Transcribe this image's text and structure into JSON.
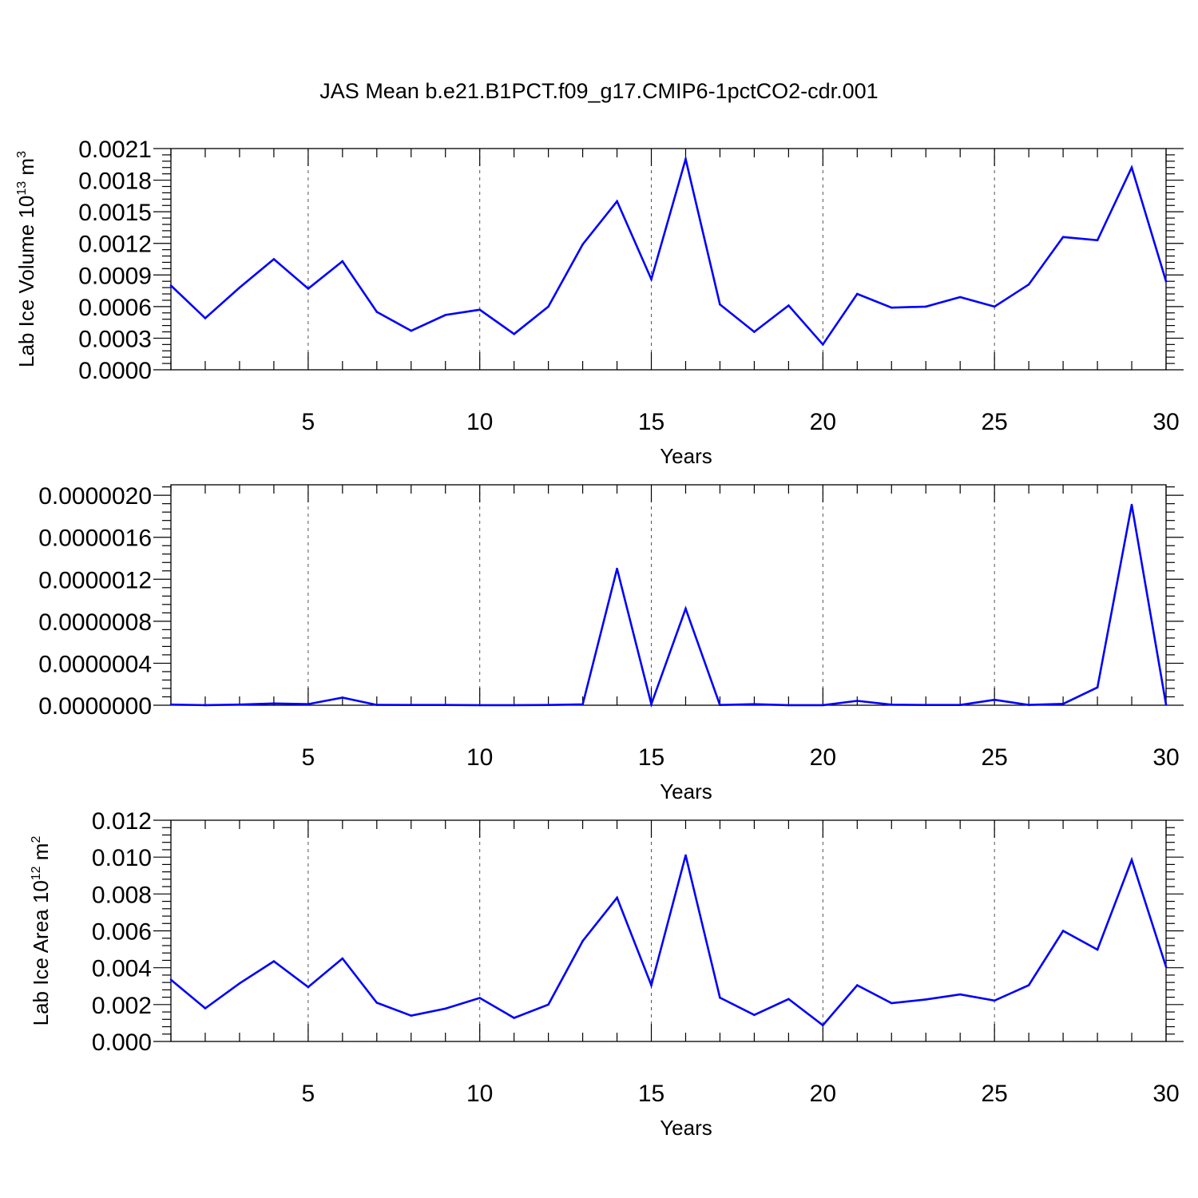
{
  "title": "JAS Mean b.e21.B1PCT.f09_g17.CMIP6-1pctCO2-cdr.001",
  "line_color": "#0000ff",
  "chart_data": [
    {
      "type": "line",
      "title": "JAS Mean b.e21.B1PCT.f09_g17.CMIP6-1pctCO2-cdr.001",
      "xlabel": "Years",
      "ylabel": {
        "prefix": "Lab Ice Volume 10",
        "exp": "13",
        "unit": " m",
        "unit_exp": "3"
      },
      "xlim": [
        1,
        30
      ],
      "ylim": [
        0,
        0.0021
      ],
      "xticks": [
        5,
        10,
        15,
        20,
        25,
        30
      ],
      "xtick_labels": [
        "5",
        "10",
        "15",
        "20",
        "25",
        "30"
      ],
      "yticks": [
        0,
        0.0003,
        0.0006,
        0.0009,
        0.0012,
        0.0015,
        0.0018,
        0.0021
      ],
      "ytick_labels": [
        "0.0000",
        "0.0003",
        "0.0006",
        "0.0009",
        "0.0012",
        "0.0015",
        "0.0018",
        "0.0021"
      ],
      "grid": "vertical dashed at major x ticks",
      "x": [
        1,
        2,
        3,
        4,
        5,
        6,
        7,
        8,
        9,
        10,
        11,
        12,
        13,
        14,
        15,
        16,
        17,
        18,
        19,
        20,
        21,
        22,
        23,
        24,
        25,
        26,
        27,
        28,
        29,
        30
      ],
      "values": [
        0.0008,
        0.00049,
        0.00078,
        0.00105,
        0.00077,
        0.00103,
        0.00055,
        0.00037,
        0.00052,
        0.00057,
        0.00034,
        0.0006,
        0.00119,
        0.0016,
        0.00086,
        0.002,
        0.00062,
        0.00036,
        0.00061,
        0.00024,
        0.00072,
        0.00059,
        0.0006,
        0.00069,
        0.0006,
        0.00081,
        0.00126,
        0.00123,
        0.00192,
        0.00084
      ]
    },
    {
      "type": "line",
      "xlabel": "Years",
      "ylabel": null,
      "xlim": [
        1,
        30
      ],
      "ylim": [
        0,
        2.1e-06
      ],
      "xticks": [
        5,
        10,
        15,
        20,
        25,
        30
      ],
      "xtick_labels": [
        "5",
        "10",
        "15",
        "20",
        "25",
        "30"
      ],
      "yticks": [
        0,
        4e-07,
        8e-07,
        1.2e-06,
        1.6e-06,
        2e-06
      ],
      "ytick_labels": [
        "0.0000000",
        "0.0000004",
        "0.0000008",
        "0.0000012",
        "0.0000016",
        "0.0000020"
      ],
      "grid": "vertical dashed at major x ticks",
      "x": [
        1,
        2,
        3,
        4,
        5,
        6,
        7,
        8,
        9,
        10,
        11,
        12,
        13,
        14,
        15,
        16,
        17,
        18,
        19,
        20,
        21,
        22,
        23,
        24,
        25,
        26,
        27,
        28,
        29,
        30
      ],
      "values": [
        6e-09,
        1e-09,
        6e-09,
        1.7e-08,
        1.1e-08,
        7.2e-08,
        3e-09,
        2e-09,
        2e-09,
        1e-09,
        1e-09,
        2e-09,
        8e-09,
        1.3e-06,
        1e-08,
        9.2e-07,
        2e-09,
        1e-08,
        1e-09,
        1e-09,
        4.2e-08,
        5e-09,
        2e-09,
        2e-09,
        5.2e-08,
        3e-09,
        1.3e-08,
        1.7e-07,
        1.91e-06,
        5e-09
      ]
    },
    {
      "type": "line",
      "xlabel": "Years",
      "ylabel": {
        "prefix": "Lab Ice Area 10",
        "exp": "12",
        "unit": " m",
        "unit_exp": "2"
      },
      "xlim": [
        1,
        30
      ],
      "ylim": [
        0,
        0.012
      ],
      "xticks": [
        5,
        10,
        15,
        20,
        25,
        30
      ],
      "xtick_labels": [
        "5",
        "10",
        "15",
        "20",
        "25",
        "30"
      ],
      "yticks": [
        0,
        0.002,
        0.004,
        0.006,
        0.008,
        0.01,
        0.012
      ],
      "ytick_labels": [
        "0.000",
        "0.002",
        "0.004",
        "0.006",
        "0.008",
        "0.010",
        "0.012"
      ],
      "grid": "vertical dashed at major x ticks",
      "x": [
        1,
        2,
        3,
        4,
        5,
        6,
        7,
        8,
        9,
        10,
        11,
        12,
        13,
        14,
        15,
        16,
        17,
        18,
        19,
        20,
        21,
        22,
        23,
        24,
        25,
        26,
        27,
        28,
        29,
        30
      ],
      "values": [
        0.00335,
        0.0018,
        0.00315,
        0.00435,
        0.00295,
        0.0045,
        0.0021,
        0.0014,
        0.00178,
        0.00236,
        0.00128,
        0.002,
        0.00545,
        0.0078,
        0.00305,
        0.0101,
        0.00238,
        0.00144,
        0.0023,
        0.00088,
        0.00305,
        0.00208,
        0.00228,
        0.00255,
        0.00222,
        0.00305,
        0.006,
        0.00498,
        0.00985,
        0.00405
      ]
    }
  ]
}
